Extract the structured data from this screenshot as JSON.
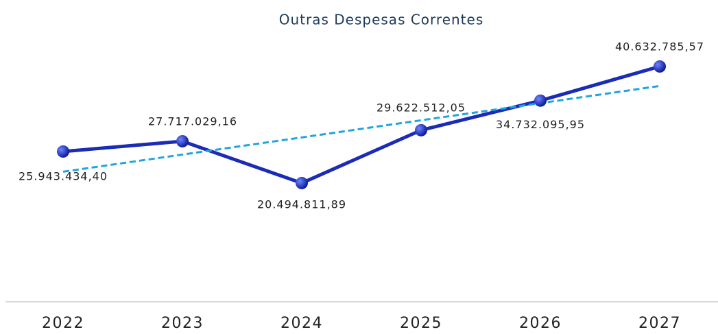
{
  "chart_data": {
    "type": "line",
    "title": "Outras Despesas Correntes",
    "categories": [
      "2022",
      "2023",
      "2024",
      "2025",
      "2026",
      "2027"
    ],
    "series": [
      {
        "color": "#1a2cb5",
        "values": [
          25943434.4,
          27717029.16,
          20494811.89,
          29622512.05,
          34732095.95,
          40632785.57
        ],
        "value_labels": [
          "25.943.434,40",
          "27.717.029,16",
          "20.494.811,89",
          "29.622.512,05",
          "34.732.095,95",
          "40.632.785,57"
        ]
      }
    ],
    "ylim": [
      0,
      45000000
    ],
    "trendline": {
      "type": "linear",
      "color": "#1ea5e0"
    }
  }
}
